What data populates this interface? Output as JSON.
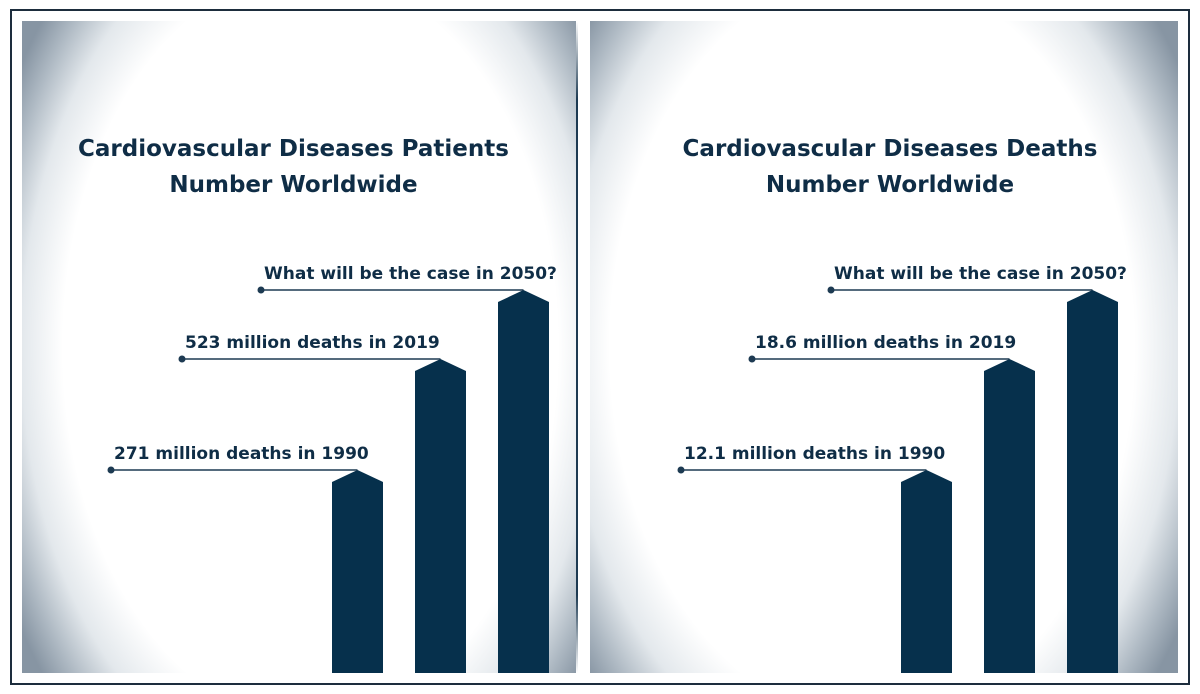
{
  "chart_data": [
    {
      "type": "bar",
      "title_lines": [
        "Cardiovascular Diseases Patients",
        "Number Worldwide"
      ],
      "bars": [
        {
          "label": "271 million deaths in 1990",
          "value": 271
        },
        {
          "label": "523 million deaths in 2019",
          "value": 523
        },
        {
          "label": "What will be the case in 2050?",
          "value": null
        }
      ],
      "color": "#06304c"
    },
    {
      "type": "bar",
      "title_lines": [
        "Cardiovascular Diseases Deaths",
        "Number Worldwide"
      ],
      "bars": [
        {
          "label": "12.1 million deaths in 1990",
          "value": 12.1
        },
        {
          "label": "18.6 million deaths in 2019",
          "value": 18.6
        },
        {
          "label": "What will be the case in 2050?",
          "value": null
        }
      ],
      "color": "#06304c"
    }
  ]
}
